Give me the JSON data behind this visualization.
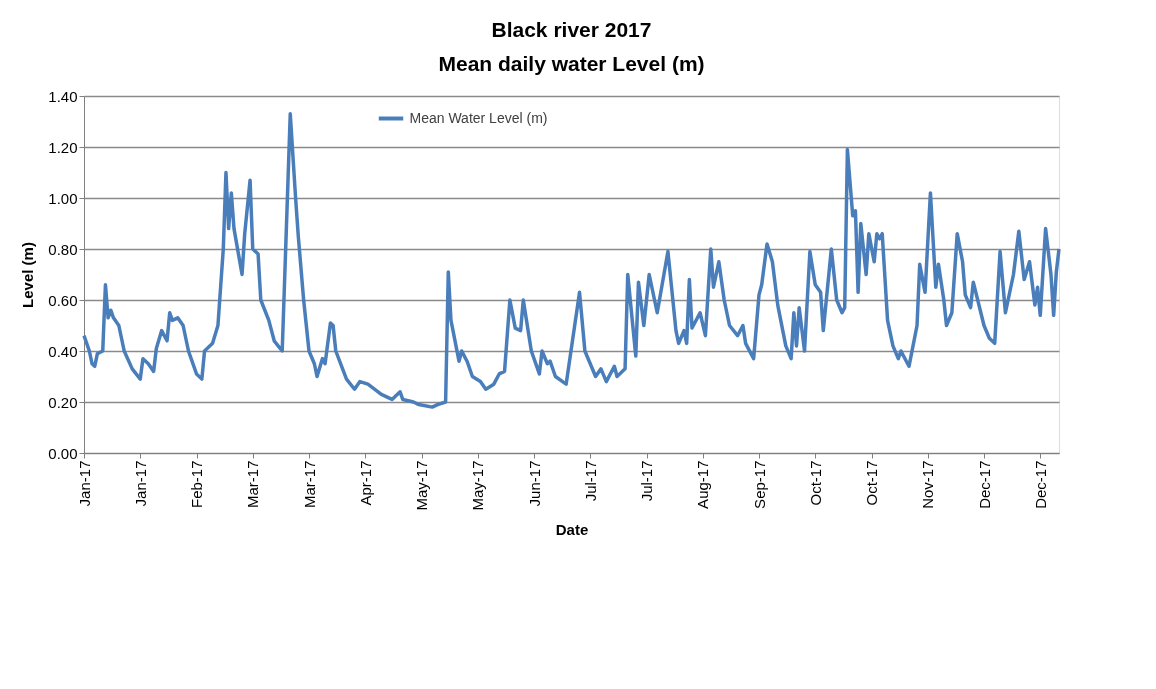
{
  "chart_data": {
    "type": "line",
    "title": [
      "Black river 2017",
      "Mean daily water Level (m)"
    ],
    "xlabel": "Date",
    "ylabel": "Level (m)",
    "x": [
      "2017-01-01",
      "2017-01-03",
      "2017-01-04",
      "2017-01-05",
      "2017-01-06",
      "2017-01-08",
      "2017-01-09",
      "2017-01-10",
      "2017-01-11",
      "2017-01-12",
      "2017-01-14",
      "2017-01-16",
      "2017-01-19",
      "2017-01-22",
      "2017-01-23",
      "2017-01-25",
      "2017-01-27",
      "2017-01-28",
      "2017-01-30",
      "2017-02-01",
      "2017-02-02",
      "2017-02-03",
      "2017-02-05",
      "2017-02-07",
      "2017-02-09",
      "2017-02-12",
      "2017-02-14",
      "2017-02-15",
      "2017-02-18",
      "2017-02-20",
      "2017-02-22",
      "2017-02-23",
      "2017-02-24",
      "2017-02-25",
      "2017-02-26",
      "2017-03-01",
      "2017-03-02",
      "2017-03-04",
      "2017-03-05",
      "2017-03-07",
      "2017-03-08",
      "2017-03-11",
      "2017-03-13",
      "2017-03-16",
      "2017-03-19",
      "2017-03-21",
      "2017-03-22",
      "2017-03-24",
      "2017-03-26",
      "2017-03-28",
      "2017-03-29",
      "2017-03-31",
      "2017-04-01",
      "2017-04-03",
      "2017-04-04",
      "2017-04-05",
      "2017-04-09",
      "2017-04-12",
      "2017-04-14",
      "2017-04-17",
      "2017-04-22",
      "2017-04-26",
      "2017-04-29",
      "2017-04-30",
      "2017-05-04",
      "2017-05-06",
      "2017-05-11",
      "2017-05-13",
      "2017-05-16",
      "2017-05-17",
      "2017-05-18",
      "2017-05-21",
      "2017-05-22",
      "2017-05-24",
      "2017-05-26",
      "2017-05-29",
      "2017-05-31",
      "2017-06-03",
      "2017-06-05",
      "2017-06-07",
      "2017-06-09",
      "2017-06-11",
      "2017-06-13",
      "2017-06-14",
      "2017-06-17",
      "2017-06-20",
      "2017-06-21",
      "2017-06-23",
      "2017-06-24",
      "2017-06-26",
      "2017-06-30",
      "2017-07-05",
      "2017-07-07",
      "2017-07-11",
      "2017-07-13",
      "2017-07-15",
      "2017-07-18",
      "2017-07-19",
      "2017-07-22",
      "2017-07-23",
      "2017-07-26",
      "2017-07-27",
      "2017-07-29",
      "2017-07-31",
      "2017-08-01",
      "2017-08-03",
      "2017-08-07",
      "2017-08-10",
      "2017-08-11",
      "2017-08-13",
      "2017-08-14",
      "2017-08-15",
      "2017-08-16",
      "2017-08-19",
      "2017-08-21",
      "2017-08-23",
      "2017-08-24",
      "2017-08-26",
      "2017-08-28",
      "2017-08-30",
      "2017-09-02",
      "2017-09-04",
      "2017-09-05",
      "2017-09-08",
      "2017-09-10",
      "2017-09-11",
      "2017-09-13",
      "2017-09-15",
      "2017-09-17",
      "2017-09-20",
      "2017-09-22",
      "2017-09-23",
      "2017-09-24",
      "2017-09-25",
      "2017-09-27",
      "2017-09-29",
      "2017-10-01",
      "2017-10-03",
      "2017-10-04",
      "2017-10-07",
      "2017-10-09",
      "2017-10-11",
      "2017-10-12",
      "2017-10-13",
      "2017-10-15",
      "2017-10-16",
      "2017-10-17",
      "2017-10-18",
      "2017-10-20",
      "2017-10-21",
      "2017-10-23",
      "2017-10-24",
      "2017-10-25",
      "2017-10-26",
      "2017-10-28",
      "2017-10-30",
      "2017-11-01",
      "2017-11-02",
      "2017-11-04",
      "2017-11-05",
      "2017-11-08",
      "2017-11-09",
      "2017-11-11",
      "2017-11-13",
      "2017-11-15",
      "2017-11-16",
      "2017-11-18",
      "2017-11-19",
      "2017-11-21",
      "2017-11-23",
      "2017-11-25",
      "2017-11-26",
      "2017-11-28",
      "2017-11-29",
      "2017-12-03",
      "2017-12-05",
      "2017-12-07",
      "2017-12-09",
      "2017-12-11",
      "2017-12-14",
      "2017-12-16",
      "2017-12-18",
      "2017-12-20",
      "2017-12-22",
      "2017-12-23",
      "2017-12-24",
      "2017-12-26",
      "2017-12-28",
      "2017-12-29",
      "2017-12-30",
      "2017-12-31"
    ],
    "series": [
      {
        "name": "Mean Water Level (m)",
        "color": "#4a7ebb",
        "values": [
          0.46,
          0.4,
          0.35,
          0.34,
          0.39,
          0.4,
          0.66,
          0.53,
          0.56,
          0.53,
          0.5,
          0.4,
          0.33,
          0.29,
          0.37,
          0.35,
          0.32,
          0.41,
          0.48,
          0.44,
          0.55,
          0.52,
          0.53,
          0.5,
          0.4,
          0.31,
          0.29,
          0.4,
          0.43,
          0.5,
          0.8,
          1.1,
          0.88,
          1.02,
          0.88,
          0.7,
          0.86,
          1.07,
          0.8,
          0.78,
          0.6,
          0.52,
          0.44,
          0.4,
          1.33,
          1.0,
          0.85,
          0.6,
          0.4,
          0.35,
          0.3,
          0.37,
          0.35,
          0.51,
          0.5,
          0.4,
          0.29,
          0.25,
          0.28,
          0.27,
          0.23,
          0.21,
          0.24,
          0.21,
          0.2,
          0.19,
          0.18,
          0.19,
          0.2,
          0.71,
          0.52,
          0.36,
          0.4,
          0.36,
          0.3,
          0.28,
          0.25,
          0.27,
          0.31,
          0.32,
          0.6,
          0.49,
          0.48,
          0.6,
          0.4,
          0.31,
          0.4,
          0.35,
          0.36,
          0.3,
          0.27,
          0.63,
          0.4,
          0.3,
          0.33,
          0.28,
          0.34,
          0.3,
          0.33,
          0.7,
          0.38,
          0.67,
          0.5,
          0.7,
          0.65,
          0.55,
          0.79,
          0.48,
          0.43,
          0.48,
          0.43,
          0.68,
          0.49,
          0.55,
          0.46,
          0.8,
          0.65,
          0.75,
          0.6,
          0.5,
          0.46,
          0.5,
          0.43,
          0.37,
          0.62,
          0.66,
          0.82,
          0.75,
          0.58,
          0.42,
          0.37,
          0.55,
          0.42,
          0.57,
          0.4,
          0.79,
          0.66,
          0.63,
          0.48,
          0.8,
          0.6,
          0.55,
          0.57,
          1.19,
          0.93,
          0.95,
          0.63,
          0.9,
          0.7,
          0.86,
          0.75,
          0.86,
          0.84,
          0.86,
          0.52,
          0.42,
          0.37,
          0.4,
          0.36,
          0.34,
          0.5,
          0.74,
          0.63,
          1.02,
          0.65,
          0.74,
          0.6,
          0.5,
          0.55,
          0.86,
          0.75,
          0.62,
          0.57,
          0.67,
          0.5,
          0.45,
          0.43,
          0.79,
          0.55,
          0.7,
          0.87,
          0.68,
          0.75,
          0.58,
          0.65,
          0.54,
          0.88,
          0.7,
          0.54,
          0.71,
          0.8
        ]
      }
    ],
    "xlim": [
      "2017-01-01",
      "2017-12-31"
    ],
    "xticks": [
      {
        "value": "2017-01-01",
        "label": "Jan-17"
      },
      {
        "value": "2017-01-22",
        "label": "Jan-17"
      },
      {
        "value": "2017-02-12",
        "label": "Feb-17"
      },
      {
        "value": "2017-03-05",
        "label": "Mar-17"
      },
      {
        "value": "2017-03-26",
        "label": "Mar-17"
      },
      {
        "value": "2017-04-16",
        "label": "Apr-17"
      },
      {
        "value": "2017-05-07",
        "label": "May-17"
      },
      {
        "value": "2017-05-28",
        "label": "May-17"
      },
      {
        "value": "2017-06-18",
        "label": "Jun-17"
      },
      {
        "value": "2017-07-09",
        "label": "Jul-17"
      },
      {
        "value": "2017-07-30",
        "label": "Jul-17"
      },
      {
        "value": "2017-08-20",
        "label": "Aug-17"
      },
      {
        "value": "2017-09-10",
        "label": "Sep-17"
      },
      {
        "value": "2017-10-01",
        "label": "Oct-17"
      },
      {
        "value": "2017-10-22",
        "label": "Oct-17"
      },
      {
        "value": "2017-11-12",
        "label": "Nov-17"
      },
      {
        "value": "2017-12-03",
        "label": "Dec-17"
      },
      {
        "value": "2017-12-24",
        "label": "Dec-17"
      }
    ],
    "ylim": [
      0,
      1.4
    ],
    "yticks": [
      {
        "value": 0,
        "label": "0.00"
      },
      {
        "value": 0.2,
        "label": "0.20"
      },
      {
        "value": 0.4,
        "label": "0.40"
      },
      {
        "value": 0.6,
        "label": "0.60"
      },
      {
        "value": 0.8,
        "label": "0.80"
      },
      {
        "value": 1.0,
        "label": "1.00"
      },
      {
        "value": 1.2,
        "label": "1.20"
      },
      {
        "value": 1.4,
        "label": "1.40"
      }
    ],
    "grid": "y",
    "legend": "top",
    "marker": "none",
    "line_style": "solid"
  }
}
